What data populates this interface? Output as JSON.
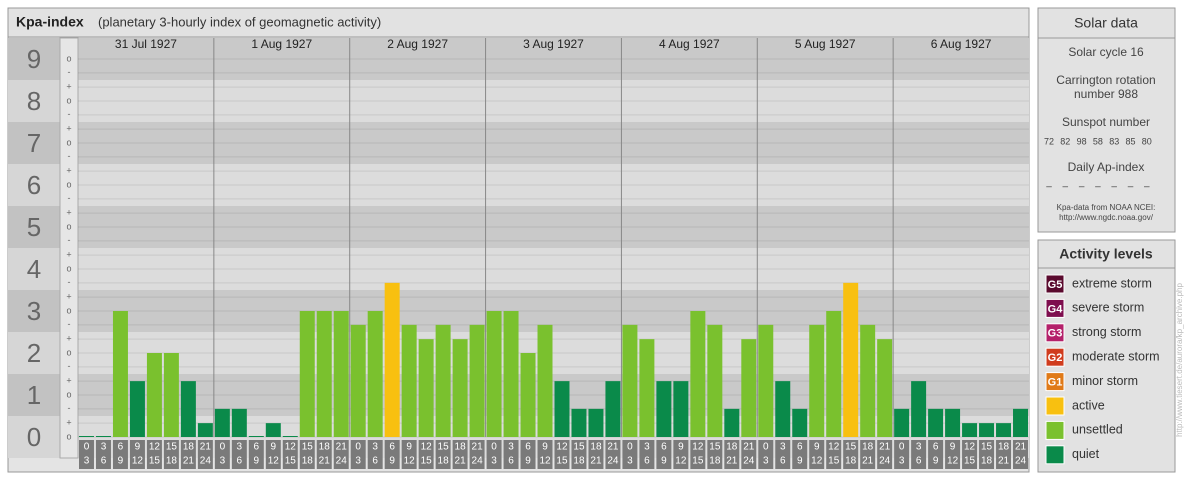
{
  "title": "Kpa-index",
  "subtitle": "(planetary 3-hourly index of geomagnetic activity)",
  "chart_data": {
    "type": "bar",
    "ylim": [
      -0.5,
      9.5
    ],
    "grid": true,
    "yticks": [
      0,
      1,
      2,
      3,
      4,
      5,
      6,
      7,
      8,
      9
    ],
    "minor_ticks": [
      {
        "value": 0,
        "label": "o"
      },
      {
        "value": 0.33,
        "label": "+"
      },
      {
        "value": 0.67,
        "label": "-"
      },
      {
        "value": 1,
        "label": "o"
      },
      {
        "value": 1.33,
        "label": "+"
      },
      {
        "value": 1.67,
        "label": "-"
      },
      {
        "value": 2,
        "label": "o"
      },
      {
        "value": 2.33,
        "label": "+"
      },
      {
        "value": 2.67,
        "label": "-"
      },
      {
        "value": 3,
        "label": "o"
      },
      {
        "value": 3.33,
        "label": "+"
      },
      {
        "value": 3.67,
        "label": "-"
      },
      {
        "value": 4,
        "label": "o"
      },
      {
        "value": 4.33,
        "label": "+"
      },
      {
        "value": 4.67,
        "label": "-"
      },
      {
        "value": 5,
        "label": "o"
      },
      {
        "value": 5.33,
        "label": "+"
      },
      {
        "value": 5.67,
        "label": "-"
      },
      {
        "value": 6,
        "label": "o"
      },
      {
        "value": 6.33,
        "label": "+"
      },
      {
        "value": 6.67,
        "label": "-"
      },
      {
        "value": 7,
        "label": "o"
      },
      {
        "value": 7.33,
        "label": "+"
      },
      {
        "value": 7.67,
        "label": "-"
      },
      {
        "value": 8,
        "label": "o"
      },
      {
        "value": 8.33,
        "label": "+"
      },
      {
        "value": 8.67,
        "label": "-"
      },
      {
        "value": 9,
        "label": "o"
      }
    ],
    "slots": [
      [
        "0",
        "3"
      ],
      [
        "3",
        "6"
      ],
      [
        "6",
        "9"
      ],
      [
        "9",
        "12"
      ],
      [
        "12",
        "15"
      ],
      [
        "15",
        "18"
      ],
      [
        "18",
        "21"
      ],
      [
        "21",
        "24"
      ]
    ],
    "days": [
      {
        "label": "31 Jul 1927",
        "values": [
          0,
          0,
          3,
          1.33,
          2,
          2,
          1.33,
          0.33
        ],
        "colors": [
          "#0a8a4a",
          "#0a8a4a",
          "#7ac12e",
          "#0a8a4a",
          "#7ac12e",
          "#7ac12e",
          "#0a8a4a",
          "#0a8a4a"
        ]
      },
      {
        "label": "1 Aug 1927",
        "values": [
          0.67,
          0.67,
          0,
          0.33,
          0,
          3,
          3,
          3
        ],
        "colors": [
          "#0a8a4a",
          "#0a8a4a",
          "#0a8a4a",
          "#0a8a4a",
          "#0a8a4a",
          "#7ac12e",
          "#7ac12e",
          "#7ac12e"
        ]
      },
      {
        "label": "2 Aug 1927",
        "values": [
          2.67,
          3,
          3.67,
          2.67,
          2.33,
          2.67,
          2.33,
          2.67
        ],
        "colors": [
          "#7ac12e",
          "#7ac12e",
          "#f8c010",
          "#7ac12e",
          "#7ac12e",
          "#7ac12e",
          "#7ac12e",
          "#7ac12e"
        ]
      },
      {
        "label": "3 Aug 1927",
        "values": [
          3,
          3,
          2,
          2.67,
          1.33,
          0.67,
          0.67,
          1.33
        ],
        "colors": [
          "#7ac12e",
          "#7ac12e",
          "#7ac12e",
          "#7ac12e",
          "#0a8a4a",
          "#0a8a4a",
          "#0a8a4a",
          "#0a8a4a"
        ]
      },
      {
        "label": "4 Aug 1927",
        "values": [
          2.67,
          2.33,
          1.33,
          1.33,
          3,
          2.67,
          0.67,
          2.33
        ],
        "colors": [
          "#7ac12e",
          "#7ac12e",
          "#0a8a4a",
          "#0a8a4a",
          "#7ac12e",
          "#7ac12e",
          "#0a8a4a",
          "#7ac12e"
        ]
      },
      {
        "label": "5 Aug 1927",
        "values": [
          2.67,
          1.33,
          0.67,
          2.67,
          3,
          3.67,
          2.67,
          2.33
        ],
        "colors": [
          "#7ac12e",
          "#0a8a4a",
          "#0a8a4a",
          "#7ac12e",
          "#7ac12e",
          "#f8c010",
          "#7ac12e",
          "#7ac12e"
        ]
      },
      {
        "label": "6 Aug 1927",
        "values": [
          0.67,
          1.33,
          0.67,
          0.67,
          0.33,
          0.33,
          0.33,
          0.67
        ],
        "colors": [
          "#0a8a4a",
          "#0a8a4a",
          "#0a8a4a",
          "#0a8a4a",
          "#0a8a4a",
          "#0a8a4a",
          "#0a8a4a",
          "#0a8a4a"
        ]
      }
    ]
  },
  "solar": {
    "title": "Solar data",
    "cycle": "Solar cycle 16",
    "rotation": [
      "Carrington rotation",
      "number 988"
    ],
    "sunspot_label": "Sunspot number",
    "sunspot_values": [
      72,
      82,
      98,
      58,
      83,
      85,
      80
    ],
    "ap_label": "Daily Ap-index",
    "ap_values": [
      "–",
      "–",
      "–",
      "–",
      "–",
      "–",
      "–"
    ],
    "source": [
      "Kpa-data from NOAA NCEI:",
      "http://www.ngdc.noaa.gov/"
    ]
  },
  "levels": {
    "title": "Activity levels",
    "items": [
      {
        "badge": "G5",
        "name": "extreme storm",
        "color": "#5a0a2e"
      },
      {
        "badge": "G4",
        "name": "severe storm",
        "color": "#7e0d4e"
      },
      {
        "badge": "G3",
        "name": "strong storm",
        "color": "#b4206a"
      },
      {
        "badge": "G2",
        "name": "moderate storm",
        "color": "#d03c1e"
      },
      {
        "badge": "G1",
        "name": "minor storm",
        "color": "#e07a18"
      },
      {
        "name": "active",
        "color": "#f8c010"
      },
      {
        "name": "unsettled",
        "color": "#7ac12e"
      },
      {
        "name": "quiet",
        "color": "#0a8a4a"
      }
    ]
  },
  "watermark": "http://www.tiesert.de/aurora/kp_archive.php"
}
